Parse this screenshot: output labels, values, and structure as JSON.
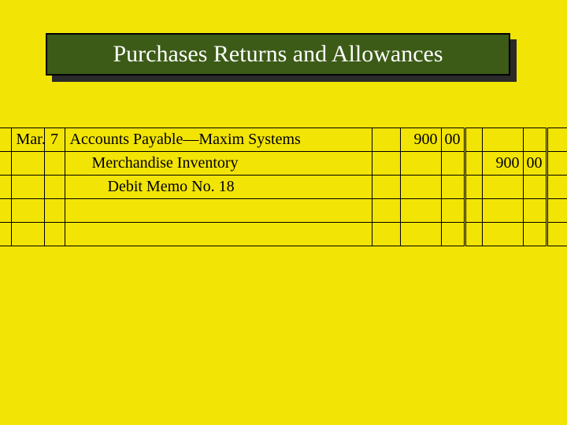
{
  "slide": {
    "title": "Purchases Returns and Allowances",
    "background_color": "#f2e405",
    "title_bg": "#3c5b17",
    "title_text_color": "#ffffff",
    "title_shadow_color": "#2a2a2a",
    "title_fontsize": 30
  },
  "journal": {
    "type": "table",
    "rule_color": "#000000",
    "font_family": "Times New Roman",
    "body_fontsize": 20,
    "columns": [
      "month",
      "day",
      "description",
      "post_ref",
      "debit_dollars",
      "debit_cents",
      "gap",
      "credit_dollars",
      "credit_cents"
    ],
    "rows": [
      {
        "month": "Mar.",
        "day": "7",
        "description": "Accounts Payable—Maxim Systems",
        "indent": 0,
        "debit_dollars": "900",
        "debit_cents": "00",
        "credit_dollars": "",
        "credit_cents": ""
      },
      {
        "month": "",
        "day": "",
        "description": "Merchandise Inventory",
        "indent": 1,
        "debit_dollars": "",
        "debit_cents": "",
        "credit_dollars": "900",
        "credit_cents": "00"
      },
      {
        "month": "",
        "day": "",
        "description": "Debit Memo No. 18",
        "indent": 2,
        "debit_dollars": "",
        "debit_cents": "",
        "credit_dollars": "",
        "credit_cents": ""
      },
      {
        "month": "",
        "day": "",
        "description": "",
        "indent": 0,
        "debit_dollars": "",
        "debit_cents": "",
        "credit_dollars": "",
        "credit_cents": ""
      },
      {
        "month": "",
        "day": "",
        "description": "",
        "indent": 0,
        "debit_dollars": "",
        "debit_cents": "",
        "credit_dollars": "",
        "credit_cents": ""
      }
    ]
  }
}
